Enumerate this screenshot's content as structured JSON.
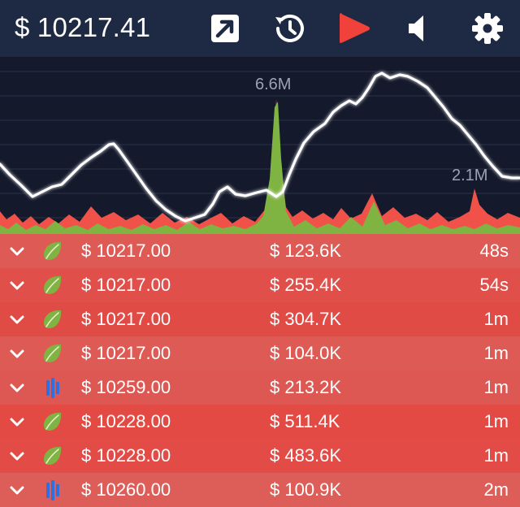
{
  "header": {
    "price": "$ 10217.41",
    "buttons": [
      {
        "name": "popout",
        "icon": "arrow-up-right-icon"
      },
      {
        "name": "history",
        "icon": "history-icon"
      },
      {
        "name": "play",
        "icon": "play-icon",
        "color": "#f0413a"
      },
      {
        "name": "sound",
        "icon": "speaker-icon"
      },
      {
        "name": "settings",
        "icon": "gear-icon"
      }
    ]
  },
  "chart_data": {
    "type": "area",
    "annotations": [
      "6.6M",
      "2.1M"
    ],
    "grid": true,
    "colors": {
      "price_line": "#ffffff",
      "buy_volume": "#7fb342",
      "sell_volume": "#f0524a"
    }
  },
  "trades": [
    {
      "price": "$ 10217.00",
      "volume": "$ 123.6K",
      "age": "48s",
      "exchange": "leaf-icon",
      "side_color": "#de5a55"
    },
    {
      "price": "$ 10217.00",
      "volume": "$ 255.4K",
      "age": "54s",
      "exchange": "leaf-icon",
      "side_color": "#e04f4a"
    },
    {
      "price": "$ 10217.00",
      "volume": "$ 304.7K",
      "age": "1m",
      "exchange": "leaf-icon",
      "side_color": "#e04b46"
    },
    {
      "price": "$ 10217.00",
      "volume": "$ 104.0K",
      "age": "1m",
      "exchange": "leaf-icon",
      "side_color": "#de5a55"
    },
    {
      "price": "$ 10259.00",
      "volume": "$ 213.2K",
      "age": "1m",
      "exchange": "bars-icon",
      "side_color": "#dd5853"
    },
    {
      "price": "$ 10228.00",
      "volume": "$ 511.4K",
      "age": "1m",
      "exchange": "leaf-icon",
      "side_color": "#e44a44"
    },
    {
      "price": "$ 10228.00",
      "volume": "$ 483.6K",
      "age": "1m",
      "exchange": "leaf-icon",
      "side_color": "#e34c46"
    },
    {
      "price": "$ 10260.00",
      "volume": "$ 100.9K",
      "age": "2m",
      "exchange": "bars-icon",
      "side_color": "#dd5e59"
    }
  ]
}
